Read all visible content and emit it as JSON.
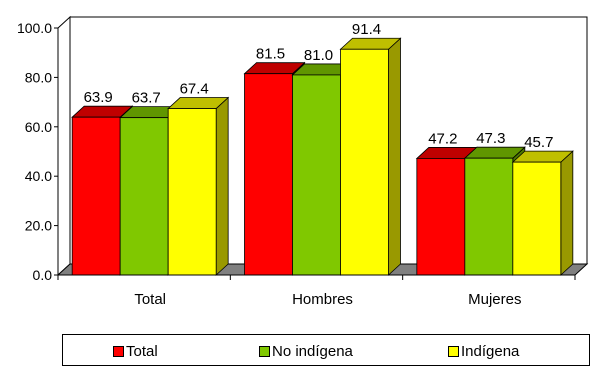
{
  "chart_data": {
    "type": "bar",
    "style": "3d-clustered",
    "categories": [
      "Total",
      "Hombres",
      "Mujeres"
    ],
    "series": [
      {
        "name": "Total",
        "values": [
          63.9,
          81.5,
          47.2
        ],
        "color": "#ff0000"
      },
      {
        "name": "No indígena",
        "values": [
          63.7,
          81.0,
          47.3
        ],
        "color": "#80c800"
      },
      {
        "name": "Indígena",
        "values": [
          67.4,
          91.4,
          45.7
        ],
        "color": "#ffff00"
      }
    ],
    "y_ticks": [
      "0.0",
      "20.0",
      "40.0",
      "60.0",
      "80.0",
      "100.0"
    ],
    "ylim": [
      0,
      100
    ],
    "title": "",
    "xlabel": "",
    "ylabel": "",
    "legend_position": "bottom",
    "grid": false,
    "wall_color": "#ffffff",
    "floor_color": "#808080"
  }
}
